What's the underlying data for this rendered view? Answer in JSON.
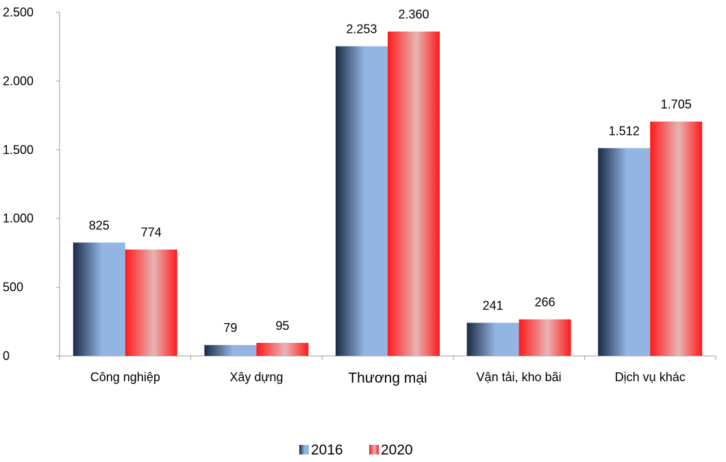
{
  "chart_data": {
    "type": "bar",
    "title": "",
    "xlabel": "",
    "ylabel": "",
    "categories": [
      "Công nghiệp",
      "Xây dựng",
      "Thương mại",
      "Vận tải, kho bãi",
      "Dịch vụ khác"
    ],
    "series": [
      {
        "name": "2016",
        "values": [
          825,
          79,
          2253,
          241,
          1512
        ],
        "value_labels": [
          "825",
          "79",
          "2.253",
          "241",
          "1.512"
        ],
        "color_dark": "#1b2a45",
        "color_light": "#93b5e3"
      },
      {
        "name": "2020",
        "values": [
          774,
          95,
          2360,
          266,
          1705
        ],
        "value_labels": [
          "774",
          "95",
          "2.360",
          "266",
          "1.705"
        ],
        "color_dark": "#ff1a1a",
        "color_light": "#e8b4b4"
      }
    ],
    "ylim": [
      0,
      2500
    ],
    "y_ticks": [
      0,
      500,
      1000,
      1500,
      2000,
      2500
    ],
    "y_tick_labels": [
      "0",
      "500",
      "1.000",
      "1.500",
      "2.000",
      "2.500"
    ],
    "grid": false,
    "legend_position": "bottom-center"
  }
}
